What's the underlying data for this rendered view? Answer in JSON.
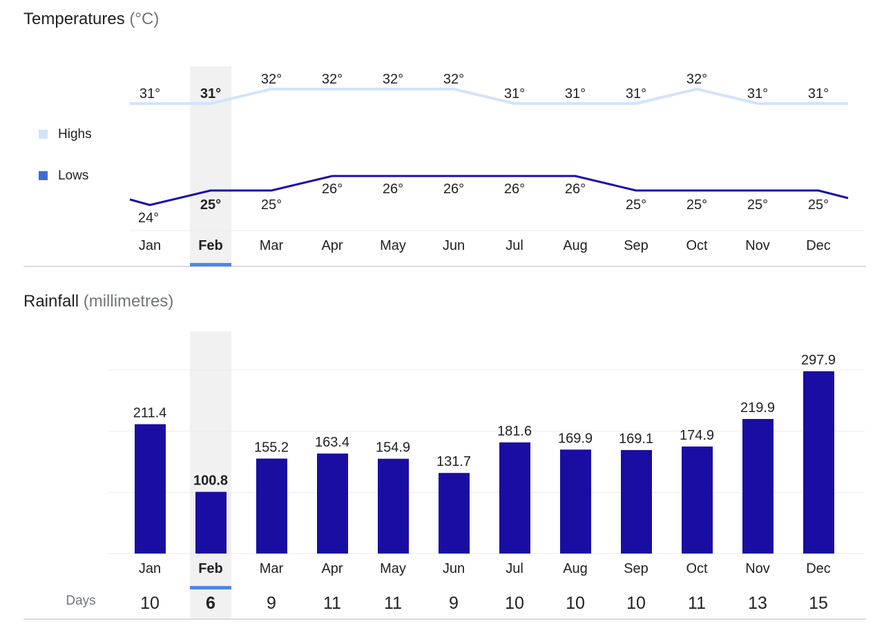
{
  "temperatures": {
    "title": "Temperatures",
    "unit": "(°C)",
    "legend": {
      "highs": "Highs",
      "lows": "Lows"
    }
  },
  "rainfall": {
    "title": "Rainfall",
    "unit": "(millimetres)",
    "days_label": "Days"
  },
  "selected_month": "Feb",
  "colors": {
    "highs": "#d2e3fc",
    "lows": "#1a0dab",
    "highs_swatch": "#d2e3fc",
    "lows_swatch": "#3e6bd6",
    "bar": "#1a0da1",
    "selected_band": "#f1f1f1",
    "selected_marker": "#4f86e6"
  },
  "chart_data": [
    {
      "type": "line",
      "title": "Temperatures (°C)",
      "categories": [
        "Jan",
        "Feb",
        "Mar",
        "Apr",
        "May",
        "Jun",
        "Jul",
        "Aug",
        "Sep",
        "Oct",
        "Nov",
        "Dec"
      ],
      "series": [
        {
          "name": "Highs",
          "values": [
            31,
            31,
            32,
            32,
            32,
            32,
            31,
            31,
            31,
            32,
            31,
            31
          ]
        },
        {
          "name": "Lows",
          "values": [
            24,
            25,
            25,
            26,
            26,
            26,
            26,
            26,
            25,
            25,
            25,
            25
          ]
        }
      ],
      "value_suffix": "°",
      "legend": "left"
    },
    {
      "type": "bar",
      "title": "Rainfall (millimetres)",
      "categories": [
        "Jan",
        "Feb",
        "Mar",
        "Apr",
        "May",
        "Jun",
        "Jul",
        "Aug",
        "Sep",
        "Oct",
        "Nov",
        "Dec"
      ],
      "values": [
        211.4,
        100.8,
        155.2,
        163.4,
        154.9,
        131.7,
        181.6,
        169.9,
        169.1,
        174.9,
        219.9,
        297.9
      ],
      "ylim": [
        0,
        300
      ],
      "grid": true,
      "rain_days": [
        10,
        6,
        9,
        11,
        11,
        9,
        10,
        10,
        10,
        11,
        13,
        15
      ]
    }
  ]
}
